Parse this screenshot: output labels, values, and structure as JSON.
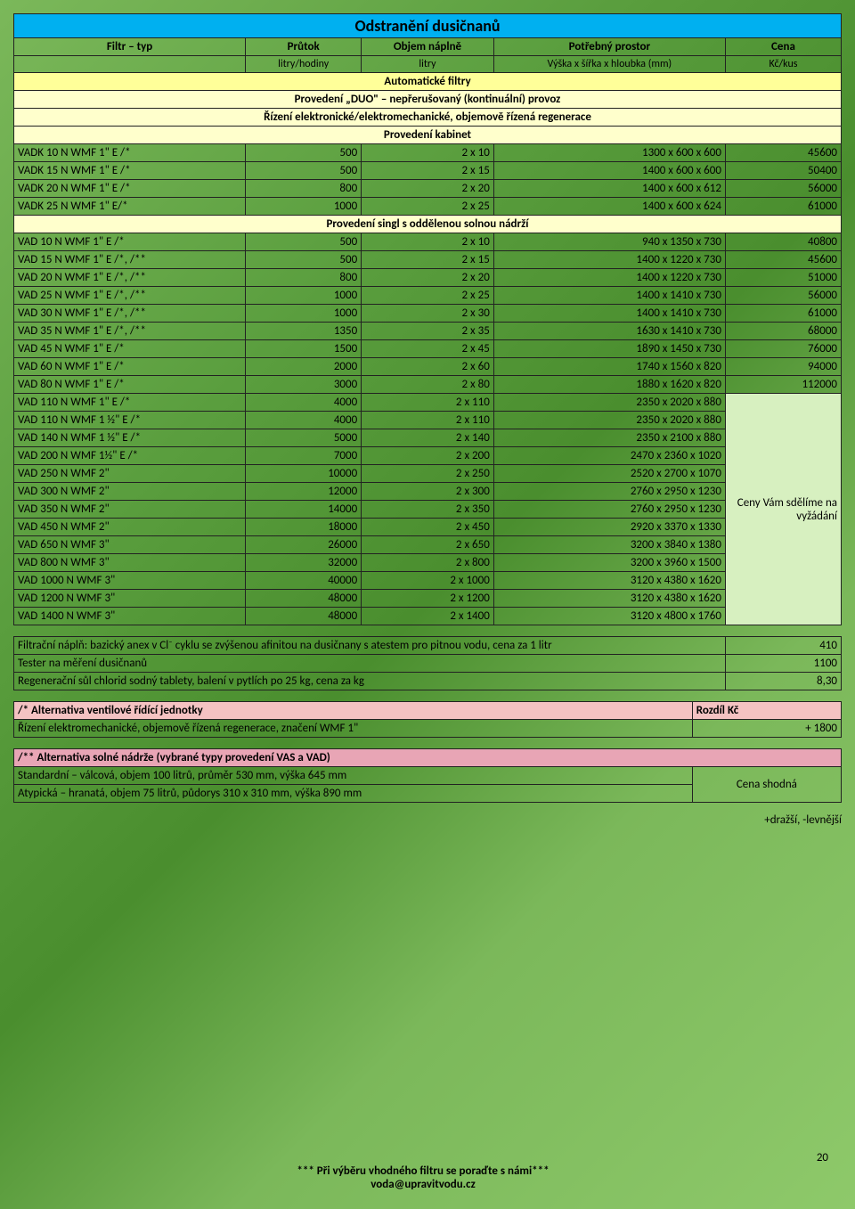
{
  "title": "Odstranění dusičnanů",
  "headers": {
    "c1a": "Filtr – typ",
    "c2a": "Průtok",
    "c3a": "Objem náplně",
    "c4a": "Potřebný prostor",
    "c5a": "Cena",
    "c2b": "litry/hodiny",
    "c3b": "litry",
    "c4b": "Výška x šířka x hloubka (mm)",
    "c5b": "Kč/kus"
  },
  "sections": {
    "auto": "Automatické filtry",
    "duo": "Provedení „DUO\" – nepřerušovaný (kontinuální) provoz",
    "rizeni": "Řízení elektronické/elektromechanické, objemově řízená regenerace",
    "kabinet": "Provedení kabinet",
    "singl": "Provedení singl s oddělenou solnou nádrží"
  },
  "rows_kabinet": [
    [
      "VADK 10 N WMF 1\" E /*",
      "500",
      "2 x 10",
      "1300 x 600 x 600",
      "45600"
    ],
    [
      "VADK 15 N WMF 1\" E /*",
      "500",
      "2 x 15",
      "1400 x 600 x 600",
      "50400"
    ],
    [
      "VADK 20 N WMF 1\" E /*",
      "800",
      "2 x 20",
      "1400 x 600 x 612",
      "56000"
    ],
    [
      "VADK 25 N WMF 1\" E/*",
      "1000",
      "2 x 25",
      "1400 x 600 x 624",
      "61000"
    ]
  ],
  "rows_singl_priced": [
    [
      "VAD 10 N WMF 1\" E /*",
      "500",
      "2 x 10",
      "940 x 1350 x 730",
      "40800"
    ],
    [
      "VAD 15 N WMF 1\" E /*, /**",
      "500",
      "2 x 15",
      "1400 x 1220 x 730",
      "45600"
    ],
    [
      "VAD 20 N WMF 1\" E /*, /**",
      "800",
      "2 x 20",
      "1400 x 1220 x 730",
      "51000"
    ],
    [
      "VAD 25 N WMF 1\" E /*, /**",
      "1000",
      "2 x 25",
      "1400 x 1410 x 730",
      "56000"
    ],
    [
      "VAD 30 N WMF 1\" E /*, /**",
      "1000",
      "2 x 30",
      "1400 x 1410 x 730",
      "61000"
    ],
    [
      "VAD 35 N WMF 1\" E /*, /**",
      "1350",
      "2 x 35",
      "1630 x 1410 x 730",
      "68000"
    ],
    [
      "VAD 45 N WMF 1\" E /*",
      "1500",
      "2 x 45",
      "1890 x 1450 x 730",
      "76000"
    ],
    [
      "VAD 60 N WMF 1\" E /*",
      "2000",
      "2 x 60",
      "1740 x 1560 x 820",
      "94000"
    ],
    [
      "VAD 80 N WMF 1\" E /*",
      "3000",
      "2 x 80",
      "1880 x 1620 x 820",
      "112000"
    ]
  ],
  "rows_singl_sdelime": [
    [
      "VAD 110 N WMF 1\" E /*",
      "4000",
      "2 x 110",
      "2350 x 2020 x 880"
    ],
    [
      "VAD 110 N WMF 1 ½\" E /*",
      "4000",
      "2 x 110",
      "2350 x 2020 x 880"
    ],
    [
      "VAD 140 N WMF 1 ½\" E /*",
      "5000",
      "2 x 140",
      "2350 x 2100 x 880"
    ],
    [
      "VAD 200 N WMF 1½\" E /*",
      "7000",
      "2 x 200",
      "2470 x 2360 x 1020"
    ],
    [
      "VAD 250 N WMF 2\"",
      "10000",
      "2 x 250",
      "2520 x 2700 x 1070"
    ],
    [
      "VAD 300 N WMF 2\"",
      "12000",
      "2 x 300",
      "2760 x 2950 x 1230"
    ],
    [
      "VAD 350 N WMF 2\"",
      "14000",
      "2 x 350",
      "2760 x 2950 x 1230"
    ],
    [
      "VAD 450 N WMF 2\"",
      "18000",
      "2 x 450",
      "2920 x 3370 x 1330"
    ],
    [
      "VAD 650 N WMF 3\"",
      "26000",
      "2 x 650",
      "3200 x 3840 x 1380"
    ],
    [
      "VAD 800 N WMF 3\"",
      "32000",
      "2 x 800",
      "3200 x 3960 x 1500"
    ],
    [
      "VAD 1000 N WMF 3\"",
      "40000",
      "2 x 1000",
      "3120 x 4380 x 1620"
    ],
    [
      "VAD 1200 N WMF 3\"",
      "48000",
      "2 x 1200",
      "3120 x 4380 x 1620"
    ],
    [
      "VAD 1400 N WMF 3\"",
      "48000",
      "2 x 1400",
      "3120 x 4800 x 1760"
    ]
  ],
  "price_note": "Ceny Vám sdělíme na vyžádání",
  "accessories": [
    [
      "Filtrační náplň: bazický anex v Cl⁻ cyklu se zvýšenou afinitou na dusičnany s atestem pro pitnou vodu, cena za 1 litr",
      "410"
    ],
    [
      "Tester na měření dusičnanů",
      "1100"
    ],
    [
      "Regenerační sůl chlorid sodný tablety, balení v pytlích po 25 kg, cena za kg",
      "8,30"
    ]
  ],
  "alt1_header": {
    "left": "/* Alternativa ventilové řídící jednotky",
    "right": "Rozdíl Kč"
  },
  "alt1_row": {
    "left": "Řízení elektromechanické, objemově řízená regenerace, značení WMF 1\"",
    "right": "+ 1800"
  },
  "alt2_header": "/** Alternativa solné nádrže (vybrané typy provedení VAS a VAD)",
  "alt2_rows": [
    "Standardní – válcová, objem 100 litrů, průměr 530 mm, výška 645 mm",
    "Atypická – hranatá, objem 75 litrů, půdorys 310 x 310 mm, výška 890 mm"
  ],
  "alt2_price": "Cena shodná",
  "note": "+dražší, -levnější",
  "footer1": "*** Při výběru vhodného filtru se poraďte s námi***",
  "footer2": "voda@upravitvodu.cz",
  "page": "20"
}
